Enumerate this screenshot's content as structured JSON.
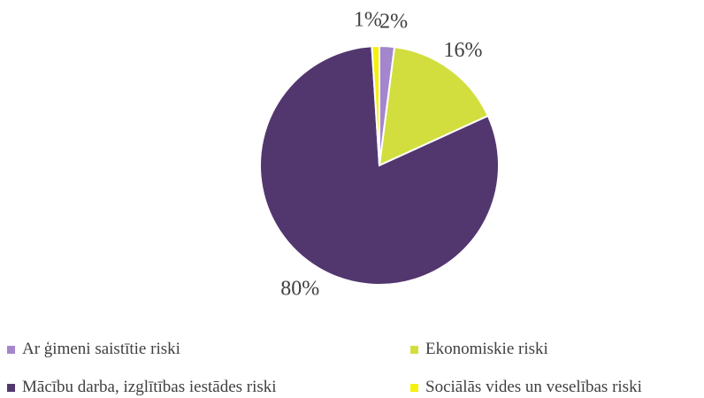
{
  "chart_data": {
    "type": "pie",
    "title": "",
    "categories": [
      "Ar ģimeni saistītie riski",
      "Ekonomiskie riski",
      "Mācību darba, izglītības iestādes riski",
      "Sociālās vides un veselības riski"
    ],
    "values": [
      2,
      16,
      80,
      1
    ],
    "data_labels": [
      "2%",
      "16%",
      "80%",
      "1%"
    ],
    "colors": [
      "#a486cc",
      "#d2de3e",
      "#52376f",
      "#f5f10a"
    ],
    "legend_position": "bottom"
  }
}
